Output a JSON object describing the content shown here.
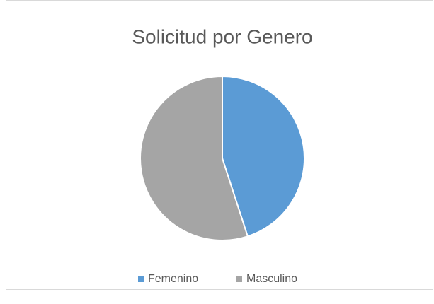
{
  "chart_data": {
    "type": "pie",
    "title": "Solicitud por Genero",
    "categories": [
      "Femenino",
      "Masculino"
    ],
    "values": [
      45,
      55
    ],
    "colors": [
      "#5b9bd5",
      "#a5a5a5"
    ],
    "legend": "bottom"
  }
}
